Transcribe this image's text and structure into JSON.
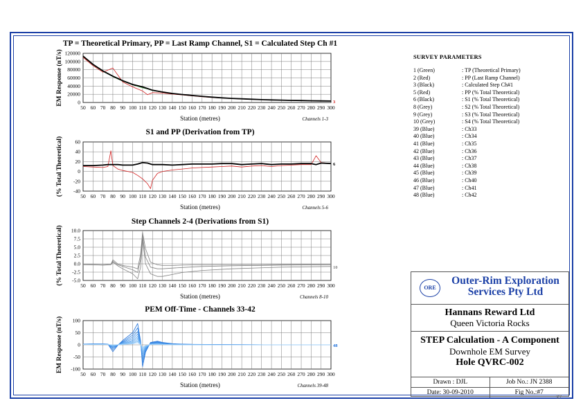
{
  "charts": [
    {
      "title": "TP = Theoretical Primary, PP = Last Ramp Channel, S1 = Calculated Step Ch #1",
      "ylabel": "EM Response (nT/s)",
      "xlabel": "Station (metres)",
      "note": "Channels 1-3",
      "end_label": "3",
      "yticks": [
        "120000",
        "100000",
        "80000",
        "60000",
        "40000",
        "20000",
        "0"
      ]
    },
    {
      "title": "S1 and PP (Derivation from TP)",
      "ylabel": "(% Total Theoretical)",
      "xlabel": "Station (metres)",
      "note": "Channels 5-6",
      "end_label": "6",
      "yticks": [
        "60",
        "40",
        "20",
        "0",
        "-20",
        "-40"
      ]
    },
    {
      "title": "Step Channels 2-4 (Derivations from S1)",
      "ylabel": "(% Total Theoretical)",
      "xlabel": "Station (metres)",
      "note": "Channels 8-10",
      "end_label": "10",
      "yticks": [
        "10.0",
        "7.5",
        "5.0",
        "2.5",
        "0.0",
        "-2.5",
        "-5.0"
      ]
    },
    {
      "title": "PEM Off-Time - Channels 33-42",
      "ylabel": "EM Response (nT/s)",
      "xlabel": "Station (metres)",
      "note": "Channels 39-48",
      "end_label": "48",
      "yticks": [
        "100",
        "50",
        "0",
        "-50",
        "-100"
      ]
    }
  ],
  "xticks": [
    "50",
    "60",
    "70",
    "80",
    "90",
    "100",
    "110",
    "120",
    "130",
    "140",
    "150",
    "160",
    "170",
    "180",
    "190",
    "200",
    "210",
    "220",
    "230",
    "240",
    "250",
    "260",
    "270",
    "280",
    "290",
    "300"
  ],
  "chart_data": [
    {
      "type": "line",
      "title": "TP = Theoretical Primary, PP = Last Ramp Channel, S1 = Calculated Step Ch #1",
      "xlabel": "Station (metres)",
      "ylabel": "EM Response (nT/s)",
      "xlim": [
        50,
        300
      ],
      "ylim": [
        0,
        120000
      ],
      "grid": true,
      "x": [
        50,
        60,
        70,
        80,
        90,
        100,
        110,
        115,
        120,
        130,
        140,
        150,
        160,
        170,
        180,
        190,
        200,
        210,
        220,
        230,
        240,
        250,
        260,
        270,
        280,
        290,
        300
      ],
      "series": [
        {
          "name": "1 (Green)",
          "color": "#2e9e2e",
          "values": [
            112000,
            92000,
            76000,
            63000,
            52000,
            43000,
            36000,
            33000,
            29000,
            25000,
            21500,
            19000,
            16500,
            14500,
            12500,
            11000,
            9800,
            8700,
            7700,
            6900,
            6200,
            5600,
            5000,
            4600,
            4200,
            3800,
            3500
          ]
        },
        {
          "name": "2 (Red)",
          "color": "#d22020",
          "values": [
            110000,
            90000,
            74000,
            84000,
            50000,
            38000,
            28000,
            19000,
            24000,
            23000,
            20500,
            18500,
            16000,
            14000,
            12200,
            10800,
            9600,
            8500,
            7500,
            6800,
            6100,
            5500,
            4900,
            4500,
            4100,
            3700,
            3400
          ]
        },
        {
          "name": "3 (Black)",
          "color": "#000000",
          "values": [
            113000,
            93000,
            77000,
            64000,
            53000,
            44000,
            38000,
            34000,
            30000,
            25500,
            22000,
            19500,
            17000,
            15000,
            13000,
            11300,
            10000,
            8900,
            7900,
            7000,
            6300,
            5700,
            5100,
            4700,
            4300,
            3900,
            3600
          ]
        }
      ]
    },
    {
      "type": "line",
      "title": "S1 and PP (Derivation from TP)",
      "xlabel": "Station (metres)",
      "ylabel": "(% Total Theoretical)",
      "xlim": [
        50,
        300
      ],
      "ylim": [
        -40,
        60
      ],
      "grid": true,
      "x": [
        50,
        60,
        70,
        75,
        78,
        80,
        85,
        90,
        100,
        105,
        110,
        115,
        118,
        120,
        125,
        130,
        140,
        150,
        160,
        170,
        180,
        190,
        200,
        210,
        220,
        230,
        240,
        250,
        260,
        270,
        280,
        285,
        290,
        300
      ],
      "series": [
        {
          "name": "5 (Red)",
          "color": "#d22020",
          "values": [
            10,
            9,
            8,
            10,
            42,
            12,
            5,
            2,
            -2,
            -8,
            -15,
            -25,
            -35,
            -18,
            -4,
            0,
            3,
            5,
            7,
            8,
            9,
            10,
            11,
            9,
            11,
            12,
            10,
            12,
            13,
            14,
            14,
            32,
            18,
            16
          ]
        },
        {
          "name": "6 (Black)",
          "color": "#000000",
          "values": [
            12,
            12,
            13,
            14,
            14,
            14,
            14,
            13,
            13,
            15,
            18,
            17,
            15,
            14,
            14,
            14,
            13,
            14,
            15,
            15,
            15,
            16,
            16,
            14,
            15,
            16,
            14,
            15,
            15,
            16,
            16,
            14,
            17,
            16
          ]
        }
      ]
    },
    {
      "type": "line",
      "title": "Step Channels 2-4 (Derivations from S1)",
      "xlabel": "Station (metres)",
      "ylabel": "(% Total Theoretical)",
      "xlim": [
        50,
        300
      ],
      "ylim": [
        -5,
        10
      ],
      "grid": true,
      "x": [
        50,
        60,
        70,
        78,
        80,
        85,
        90,
        100,
        105,
        108,
        110,
        113,
        118,
        125,
        130,
        140,
        150,
        170,
        200,
        250,
        300
      ],
      "series": [
        {
          "name": "8 (Grey)",
          "color": "#808080",
          "values": [
            -0.2,
            -0.3,
            -0.3,
            -0.2,
            1.2,
            0.0,
            -0.5,
            -1.0,
            -1.5,
            3.0,
            9.5,
            4.5,
            0.5,
            -0.3,
            -0.5,
            -0.5,
            -0.4,
            -0.3,
            -0.3,
            -0.2,
            -0.2
          ]
        },
        {
          "name": "9 (Grey)",
          "color": "#808080",
          "values": [
            -0.2,
            -0.2,
            -0.3,
            -0.2,
            0.8,
            -0.3,
            -0.8,
            -1.8,
            -2.6,
            1.5,
            8.5,
            2.0,
            -1.0,
            -1.5,
            -1.5,
            -1.3,
            -1.1,
            -0.8,
            -0.6,
            -0.4,
            -0.3
          ]
        },
        {
          "name": "10 (Grey)",
          "color": "#808080",
          "values": [
            -0.3,
            -0.3,
            -0.4,
            -0.3,
            0.5,
            -0.6,
            -1.5,
            -3.0,
            -4.5,
            -1.0,
            7.5,
            0.0,
            -3.0,
            -3.8,
            -3.8,
            -3.2,
            -2.6,
            -2.0,
            -1.5,
            -1.0,
            -0.8
          ]
        }
      ]
    },
    {
      "type": "line",
      "title": "PEM Off-Time - Channels 33-42",
      "xlabel": "Station (metres)",
      "ylabel": "EM Response (nT/s)",
      "xlim": [
        50,
        300
      ],
      "ylim": [
        -100,
        100
      ],
      "grid": true,
      "x": [
        50,
        60,
        70,
        75,
        80,
        85,
        90,
        100,
        105,
        108,
        110,
        113,
        118,
        125,
        130,
        140,
        150,
        160,
        200,
        250,
        300
      ],
      "series": [
        {
          "name": "39 (Blue)",
          "color": "#1e6fd9",
          "values": [
            3,
            4,
            4,
            3,
            -28,
            -2,
            18,
            50,
            88,
            15,
            -90,
            -30,
            10,
            15,
            10,
            5,
            3,
            2,
            1,
            0,
            0
          ]
        },
        {
          "name": "40 (Blue)",
          "color": "#2b7ee0",
          "values": [
            3,
            4,
            4,
            3,
            -20,
            -1,
            14,
            40,
            70,
            12,
            -75,
            -25,
            8,
            12,
            8,
            4,
            2,
            2,
            1,
            0,
            0
          ]
        },
        {
          "name": "41 (Blue)",
          "color": "#3a8be6",
          "values": [
            3,
            3,
            3,
            3,
            -14,
            0,
            11,
            32,
            55,
            10,
            -62,
            -20,
            6,
            10,
            7,
            3,
            2,
            1,
            1,
            0,
            0
          ]
        },
        {
          "name": "42 (Blue)",
          "color": "#4997ea",
          "values": [
            2,
            3,
            3,
            2,
            -10,
            0,
            9,
            25,
            44,
            8,
            -50,
            -16,
            5,
            8,
            5,
            3,
            2,
            1,
            0,
            0,
            0
          ]
        },
        {
          "name": "43 (Blue)",
          "color": "#58a2ee",
          "values": [
            2,
            2,
            3,
            2,
            -7,
            0,
            7,
            19,
            35,
            6,
            -40,
            -13,
            4,
            6,
            4,
            2,
            1,
            1,
            0,
            0,
            0
          ]
        },
        {
          "name": "44 (Blue)",
          "color": "#67adf1",
          "values": [
            2,
            2,
            2,
            2,
            -5,
            0,
            5,
            15,
            28,
            5,
            -32,
            -10,
            3,
            5,
            3,
            2,
            1,
            1,
            0,
            0,
            0
          ]
        },
        {
          "name": "45 (Blue)",
          "color": "#76b7f3",
          "values": [
            1,
            2,
            2,
            1,
            -3,
            0,
            4,
            11,
            22,
            4,
            -25,
            -8,
            2,
            4,
            2,
            1,
            1,
            0,
            0,
            0,
            0
          ]
        },
        {
          "name": "46 (Blue)",
          "color": "#85c0f5",
          "values": [
            1,
            1,
            1,
            1,
            -2,
            0,
            3,
            8,
            17,
            3,
            -19,
            -6,
            2,
            3,
            2,
            1,
            0,
            0,
            0,
            0,
            0
          ]
        },
        {
          "name": "47 (Blue)",
          "color": "#94c9f7",
          "values": [
            1,
            1,
            1,
            1,
            -1,
            0,
            2,
            6,
            13,
            2,
            -14,
            -4,
            1,
            2,
            1,
            1,
            0,
            0,
            0,
            0,
            0
          ]
        },
        {
          "name": "48 (Blue)",
          "color": "#a3d1f8",
          "values": [
            1,
            1,
            1,
            1,
            0,
            0,
            1,
            4,
            9,
            1,
            -10,
            -3,
            1,
            1,
            1,
            0,
            0,
            0,
            0,
            0,
            0
          ]
        }
      ]
    }
  ],
  "params": {
    "title": "SURVEY PARAMETERS",
    "rows": [
      {
        "k": "1 (Green)",
        "v": ": TP (Theoretical Primary)"
      },
      {
        "k": "2 (Red)",
        "v": ": PP (Last Ramp Channel)"
      },
      {
        "k": "3 (Black)",
        "v": ": Calculated Step Ch#1"
      },
      {
        "k": "5 (Red)",
        "v": ": PP (% Total Theoretical)"
      },
      {
        "k": "6 (Black)",
        "v": ": S1 (% Total Theoretical)"
      },
      {
        "k": "8 (Grey)",
        "v": ": S2 (% Total Theoretical)"
      },
      {
        "k": "9 (Grey)",
        "v": ": S3 (% Total Theoretical)"
      },
      {
        "k": "10 (Grey)",
        "v": ": S4 (% Total Theoretical)"
      },
      {
        "k": "39 (Blue)",
        "v": ": Ch33"
      },
      {
        "k": "40 (Blue)",
        "v": ": Ch34"
      },
      {
        "k": "41 (Blue)",
        "v": ": Ch35"
      },
      {
        "k": "42 (Blue)",
        "v": ": Ch36"
      },
      {
        "k": "43 (Blue)",
        "v": ": Ch37"
      },
      {
        "k": "44 (Blue)",
        "v": ": Ch38"
      },
      {
        "k": "45 (Blue)",
        "v": ": Ch39"
      },
      {
        "k": "46 (Blue)",
        "v": ": Ch40"
      },
      {
        "k": "47 (Blue)",
        "v": ": Ch41"
      },
      {
        "k": "48 (Blue)",
        "v": ": Ch42"
      }
    ]
  },
  "titleblock": {
    "logo": "ORE",
    "company": "Outer-Rim Exploration Services Pty Ltd",
    "client_name": "Hannans Reward Ltd",
    "client_project": "Queen Victoria Rocks",
    "desc1": "STEP Calculation - A Component",
    "desc2": "Downhole EM Survey",
    "desc3": "Hole QVRC-002",
    "drawn": "Drawn : DJL",
    "job": "Job No.: JN 2388",
    "date": "Date: 30-09-2010",
    "fig": "Fig No.:#7"
  },
  "page_number": "37",
  "colors": {
    "frame": "#1a3fa6",
    "company": "#1a3fa6"
  }
}
